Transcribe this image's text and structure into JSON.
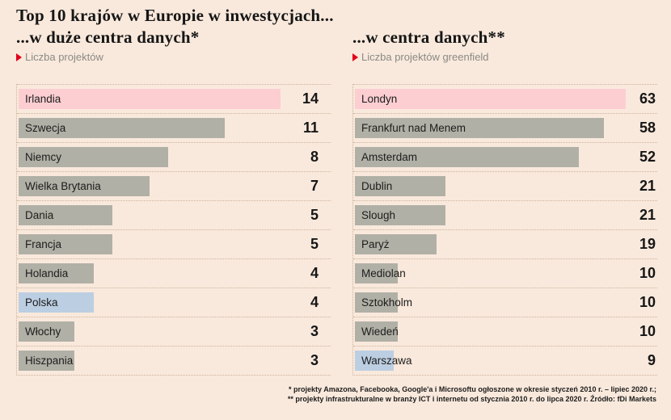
{
  "title_line1": "Top 10 krajów w Europie w inwestycjach...",
  "chart_data": [
    {
      "type": "bar",
      "orientation": "horizontal",
      "title": "...w duże centra danych*",
      "subtitle": "Liczba projektów",
      "categories": [
        "Irlandia",
        "Szwecja",
        "Niemcy",
        "Wielka Brytania",
        "Dania",
        "Francja",
        "Holandia",
        "Polska",
        "Włochy",
        "Hiszpania"
      ],
      "values": [
        14,
        11,
        8,
        7,
        5,
        5,
        4,
        4,
        3,
        3
      ],
      "bar_colors": [
        "pink",
        "gray",
        "gray",
        "gray",
        "gray",
        "gray",
        "gray",
        "blue",
        "gray",
        "gray"
      ],
      "xlim": [
        0,
        14
      ],
      "value_labels": true,
      "grid": "dotted row separators",
      "legend": "none"
    },
    {
      "type": "bar",
      "orientation": "horizontal",
      "title": "...w centra danych**",
      "subtitle": "Liczba projektów greenfield",
      "categories": [
        "Londyn",
        "Frankfurt nad Menem",
        "Amsterdam",
        "Dublin",
        "Slough",
        "Paryż",
        "Mediolan",
        "Sztokholm",
        "Wiedeń",
        "Warszawa"
      ],
      "values": [
        63,
        58,
        52,
        21,
        21,
        19,
        10,
        10,
        10,
        9
      ],
      "bar_colors": [
        "pink",
        "gray",
        "gray",
        "gray",
        "gray",
        "gray",
        "gray",
        "gray",
        "gray",
        "blue"
      ],
      "xlim": [
        0,
        63
      ],
      "value_labels": true,
      "grid": "dotted row separators",
      "legend": "none"
    }
  ],
  "footnotes": [
    "* projekty Amazona, Facebooka, Google'a i Microsoftu ogłoszone w okresie styczeń 2010 r. – lipiec 2020 r.;",
    "** projekty infrastrukturalne w branży ICT i internetu od stycznia 2010 r. do lipca 2020 r. Źródło: fDi Markets"
  ],
  "colors": {
    "background": "#f9e9dc",
    "pink": "#fcced2",
    "gray": "#b1b0a6",
    "blue": "#bccee2",
    "dotted_line": "#cdb29c",
    "accent_red": "#e2001a",
    "text_dark": "#161616",
    "text_gray": "#8a8a84"
  }
}
